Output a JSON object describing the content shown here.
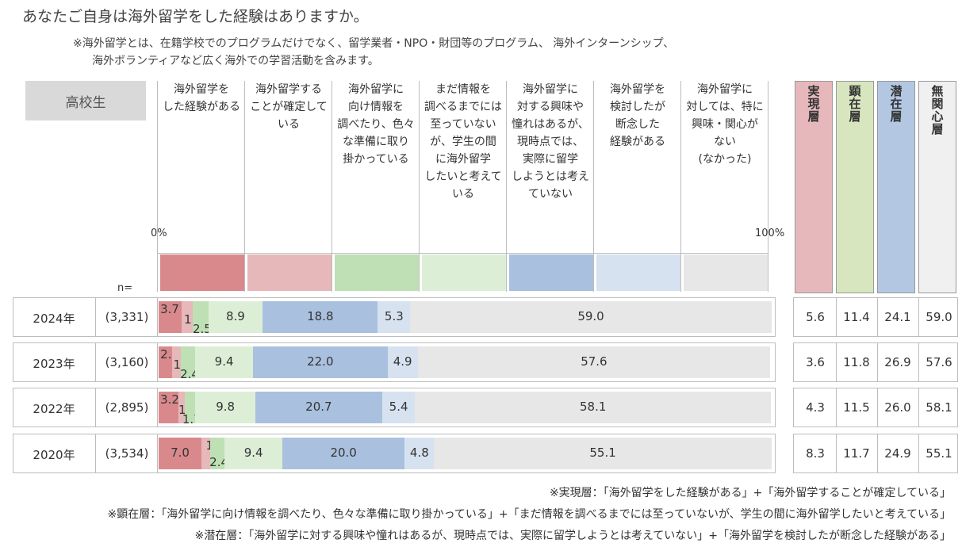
{
  "title": "あなたご自身は海外留学をした経験はありますか。",
  "notes": [
    "※海外留学とは、在籍学校でのプログラムだけでなく、留学業者・NPO・財団等のプログラム、 海外インターンシップ、",
    "海外ボランティアなど広く海外での学習活動を含みます。"
  ],
  "segment_label": "高校生",
  "axis": {
    "start": "0%",
    "end": "100%",
    "n_label": "n="
  },
  "colors": [
    "#d9898c",
    "#e6b8b9",
    "#bfe0b5",
    "#dcefd6",
    "#a9c1df",
    "#d6e2f0",
    "#e7e7e7"
  ],
  "layer_colors": [
    "#e6b8bc",
    "#d8e6bf",
    "#b3c7e3",
    "#f0f0f0"
  ],
  "layer_headers": [
    "実現層",
    "顕在層",
    "潜在層",
    "無関心層"
  ],
  "chart_data": {
    "type": "bar",
    "stacked": true,
    "orientation": "horizontal",
    "xlim": [
      0,
      100
    ],
    "categories": [
      "2024年",
      "2023年",
      "2022年",
      "2020年"
    ],
    "n": [
      "(3,331)",
      "(3,160)",
      "(2,895)",
      "(3,534)"
    ],
    "series": [
      {
        "name": "海外留学をした経験がある",
        "values": [
          3.7,
          2.2,
          3.2,
          7.0
        ]
      },
      {
        "name": "海外留学することが確定している",
        "values": [
          1.9,
          1.4,
          1.1,
          1.4
        ]
      },
      {
        "name": "海外留学に向け情報を調べたり、色々な準備に取り掛かっている",
        "values": [
          2.5,
          2.4,
          1.7,
          2.4
        ]
      },
      {
        "name": "まだ情報を調べるまでには至っていないが、学生の間に海外留学したいと考えている",
        "values": [
          8.9,
          9.4,
          9.8,
          9.4
        ]
      },
      {
        "name": "海外留学に対する興味や憧れはあるが、現時点では、実際に留学しようとは考えていない",
        "values": [
          18.8,
          22.0,
          20.7,
          20.0
        ]
      },
      {
        "name": "海外留学を検討したが断念した経験がある",
        "values": [
          5.3,
          4.9,
          5.4,
          4.8
        ]
      },
      {
        "name": "海外留学に対しては、特に興味・関心がない(なかった)",
        "values": [
          59.0,
          57.6,
          58.1,
          55.1
        ]
      }
    ],
    "layers": {
      "実現層": [
        5.6,
        3.6,
        4.3,
        8.3
      ],
      "顕在層": [
        11.4,
        11.8,
        11.5,
        11.7
      ],
      "潜在層": [
        24.1,
        26.9,
        26.0,
        24.9
      ],
      "無関心層": [
        59.0,
        57.6,
        58.1,
        55.1
      ]
    }
  },
  "column_headers": [
    "海外留学を\nした経験がある",
    "海外留学する\nことが確定して\nいる",
    "海外留学に\n向け情報を\n調べたり、色々\nな準備に取り\n掛かっている",
    "まだ情報を\n調べるまでには\n至っていない\nが、学生の間\nに海外留学\nしたいと考えて\nいる",
    "海外留学に\n対する興味や\n憧れはあるが、\n現時点では、\n実際に留学\nしようとは考え\nていない",
    "海外留学を\n検討したが\n断念した\n経験がある",
    "海外留学に\n対しては、特に\n興味・関心が\nない\n(なかった)"
  ],
  "footnotes": [
    "※実現層：「海外留学をした経験がある」+「海外留学することが確定している」",
    "※顕在層：「海外留学に向け情報を調べたり、色々な準備に取り掛かっている」+「まだ情報を調べるまでには至っていないが、学生の間に海外留学したいと考えている」",
    "※潜在層：「海外留学に対する興味や憧れはあるが、現時点では、実際に留学しようとは考えていない」+「海外留学を検討したが断念した経験がある」"
  ]
}
